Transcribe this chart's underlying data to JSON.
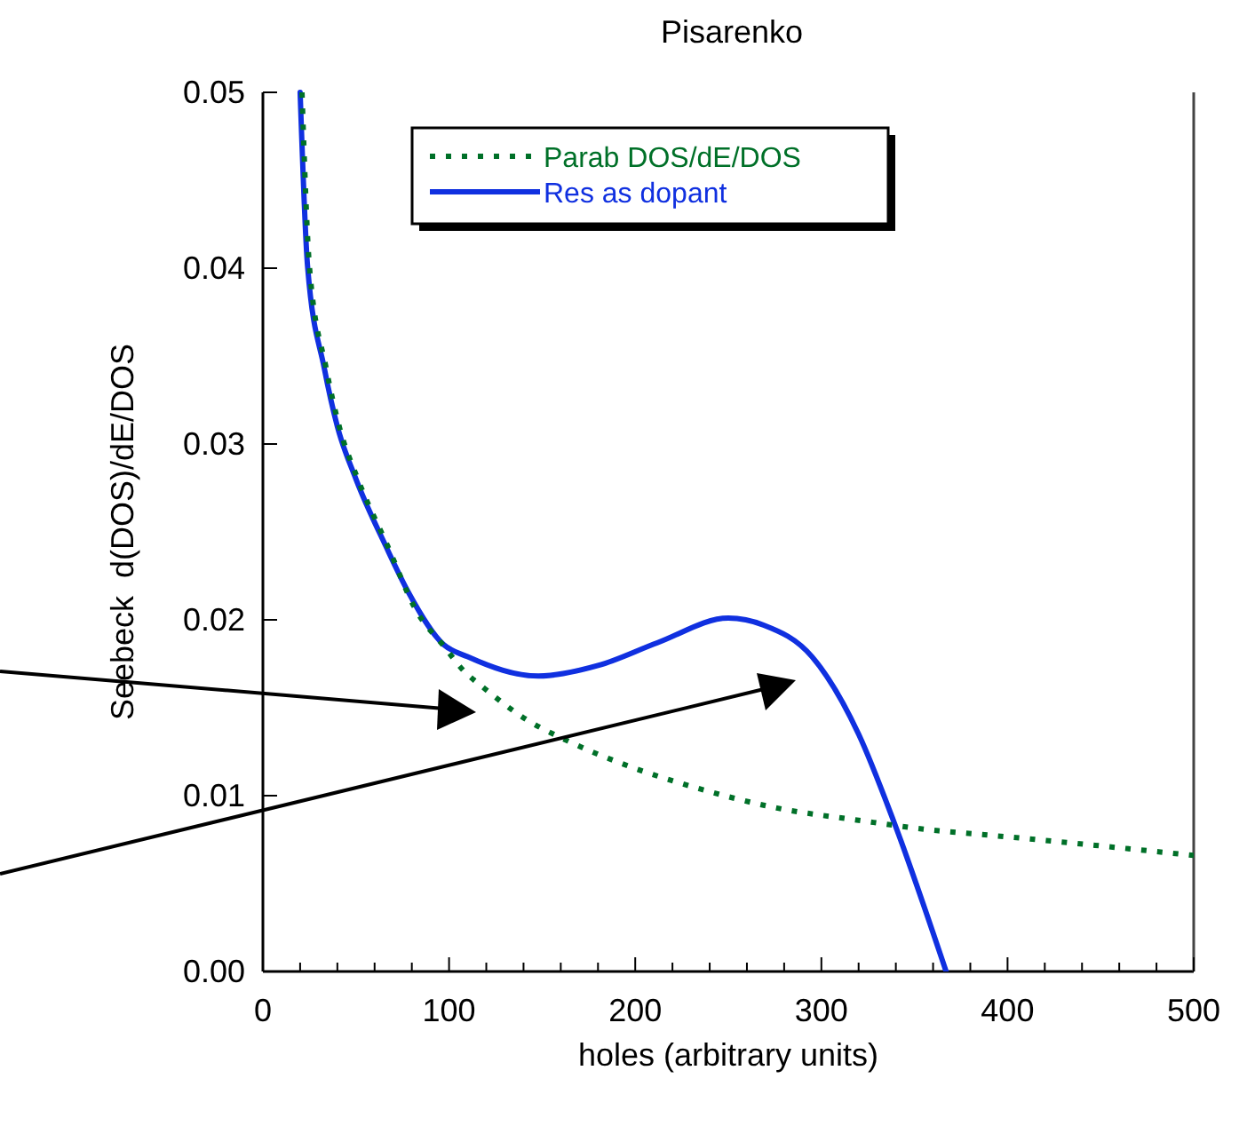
{
  "chart_data": {
    "type": "line",
    "title": "Pisarenko",
    "xlabel": "holes (arbitrary units)",
    "ylabel": "Seebeck  d(DOS)/dE/DOS",
    "series": [
      {
        "name": "Parab DOS/dE/DOS",
        "color": "#007028",
        "line_style": "dotted",
        "x": [
          21,
          25,
          34,
          41,
          51,
          67,
          82,
          98,
          107,
          119,
          142,
          164,
          196,
          231,
          276,
          320,
          363,
          385,
          500
        ],
        "values": [
          0.05,
          0.0401,
          0.0343,
          0.031,
          0.028,
          0.0242,
          0.0206,
          0.0184,
          0.0172,
          0.0161,
          0.0143,
          0.0131,
          0.0117,
          0.0105,
          0.0093,
          0.0086,
          0.008,
          0.0078,
          0.0066
        ]
      },
      {
        "name": "Res as dopant",
        "color": "#1030e0",
        "line_style": "solid",
        "x": [
          20,
          24,
          33,
          40,
          50,
          66,
          78,
          97,
          110,
          148,
          180,
          212,
          250,
          269,
          295,
          320,
          339,
          367
        ],
        "values": [
          0.05,
          0.0401,
          0.0343,
          0.031,
          0.028,
          0.0242,
          0.0216,
          0.0186,
          0.0179,
          0.0168,
          0.0174,
          0.0187,
          0.0201,
          0.0197,
          0.0179,
          0.0135,
          0.0085,
          0
        ]
      }
    ],
    "xlim": [
      0,
      500
    ],
    "xticks": [
      0,
      {
        "value": 20,
        "label": null
      },
      {
        "value": 40,
        "label": null
      },
      {
        "value": 60,
        "label": null
      },
      {
        "value": 80,
        "label": null
      },
      100,
      {
        "value": 120,
        "label": null
      },
      {
        "value": 140,
        "label": null
      },
      {
        "value": 160,
        "label": null
      },
      {
        "value": 180,
        "label": null
      },
      200,
      {
        "value": 220,
        "label": null
      },
      {
        "value": 240,
        "label": null
      },
      {
        "value": 260,
        "label": null
      },
      {
        "value": 280,
        "label": null
      },
      300,
      {
        "value": 320,
        "label": null
      },
      {
        "value": 340,
        "label": null
      },
      {
        "value": 360,
        "label": null
      },
      {
        "value": 380,
        "label": null
      },
      400,
      {
        "value": 420,
        "label": null
      },
      {
        "value": 440,
        "label": null
      },
      {
        "value": 460,
        "label": null
      },
      {
        "value": 480,
        "label": null
      },
      500
    ],
    "ylim": [
      0,
      0.05
    ],
    "yticks": [
      {
        "value": 0,
        "label": "0.00"
      },
      {
        "value": 0.01,
        "label": "0.01"
      },
      {
        "value": 0.02,
        "label": "0.02"
      },
      {
        "value": 0.03,
        "label": "0.03"
      },
      {
        "value": 0.04,
        "label": "0.04"
      },
      {
        "value": 0.05,
        "label": "0.05"
      }
    ],
    "legend": "top",
    "grid": false
  }
}
